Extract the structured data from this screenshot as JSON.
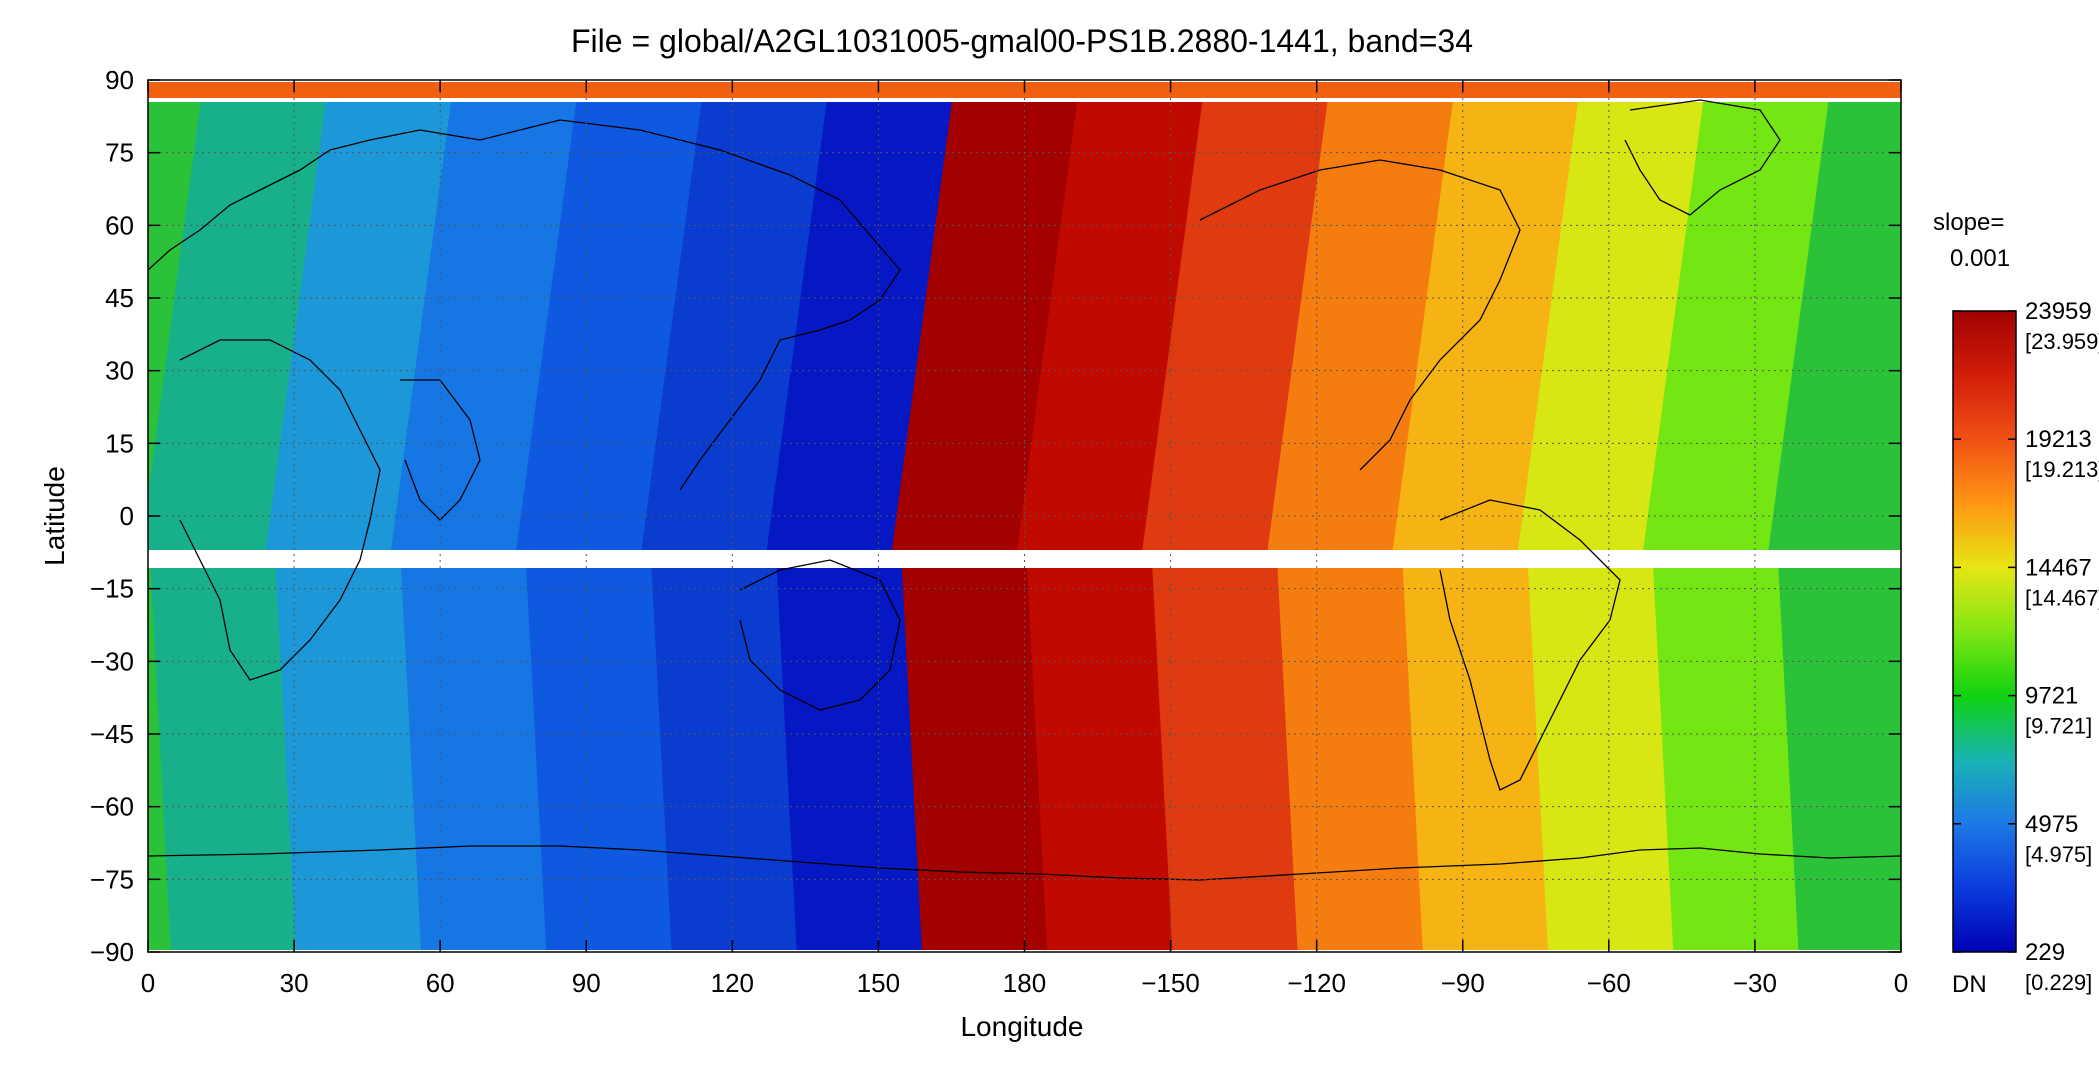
{
  "title": "File = global/A2GL1031005-gmal00-PS1B.2880-1441, band=34",
  "x_axis": {
    "label": "Longitude",
    "ticks": [
      "0",
      "30",
      "60",
      "90",
      "120",
      "150",
      "180",
      "−150",
      "−120",
      "−90",
      "−60",
      "−30",
      "0"
    ]
  },
  "y_axis": {
    "label": "Latitude",
    "ticks": [
      "90",
      "75",
      "60",
      "45",
      "30",
      "15",
      "0",
      "−15",
      "−30",
      "−45",
      "−60",
      "−75",
      "−90"
    ]
  },
  "colorbar": {
    "slope_label": "slope=",
    "slope_value": "0.001",
    "unit": "DN",
    "ticks": [
      {
        "value": "23959",
        "scaled": "[23.959]"
      },
      {
        "value": "19213",
        "scaled": "[19.213]"
      },
      {
        "value": "14467",
        "scaled": "[14.467]"
      },
      {
        "value": "9721",
        "scaled": "[9.721]"
      },
      {
        "value": "4975",
        "scaled": "[4.975]"
      },
      {
        "value": "229",
        "scaled": "[0.229]"
      }
    ],
    "gradient_colors": [
      "#0000b4",
      "#0a3cdc",
      "#1e78e6",
      "#19b4b4",
      "#0fd20f",
      "#82e614",
      "#e6e614",
      "#ff9614",
      "#f05014",
      "#d21e0a",
      "#a00000"
    ]
  },
  "swaths": [
    {
      "color": "#2bc23a"
    },
    {
      "color": "#17b08a"
    },
    {
      "color": "#1c98d8"
    },
    {
      "color": "#1676e3"
    },
    {
      "color": "#0f58e0"
    },
    {
      "color": "#0a3ccf"
    },
    {
      "color": "#0518c4"
    },
    {
      "color": "#a30000"
    },
    {
      "color": "#c00a00"
    },
    {
      "color": "#e03a10"
    },
    {
      "color": "#f57d10"
    },
    {
      "color": "#f5b414"
    },
    {
      "color": "#d8e614"
    },
    {
      "color": "#74e614"
    },
    {
      "color": "#2bc23a"
    }
  ]
}
